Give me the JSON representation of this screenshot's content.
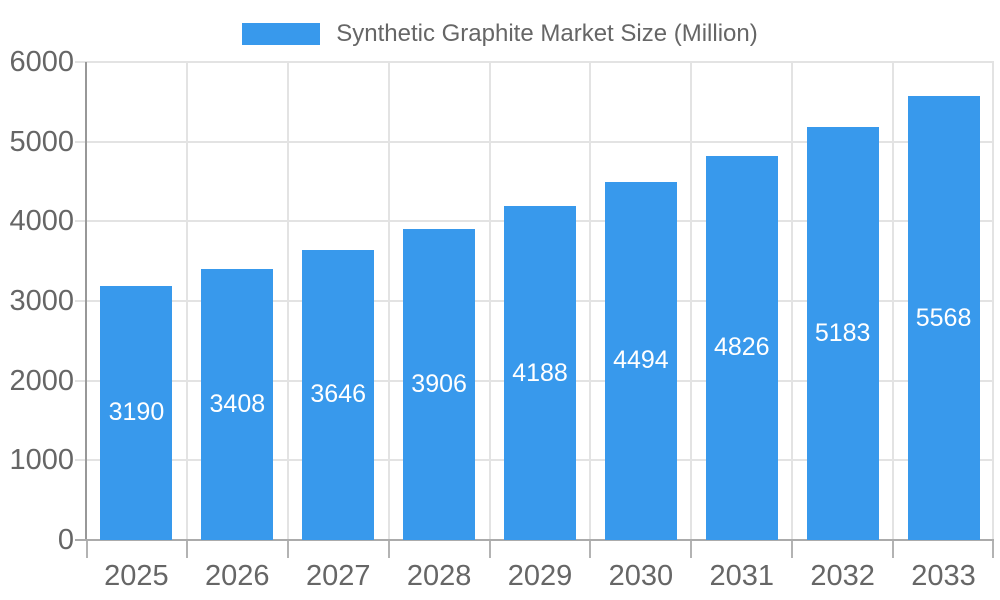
{
  "legend": {
    "label": "Synthetic Graphite Market Size (Million)",
    "swatch_color": "#3899EC"
  },
  "chart_data": {
    "type": "bar",
    "title": "",
    "series_name": "Synthetic Graphite Market Size (Million)",
    "categories": [
      "2025",
      "2026",
      "2027",
      "2028",
      "2029",
      "2030",
      "2031",
      "2032",
      "2033"
    ],
    "values": [
      3190,
      3408,
      3646,
      3906,
      4188,
      4494,
      4826,
      5183,
      5568
    ],
    "xlabel": "",
    "ylabel": "",
    "ylim": [
      0,
      6000
    ],
    "ytick_step": 1000,
    "y_tick_labels": [
      "0",
      "1000",
      "2000",
      "3000",
      "4000",
      "5000",
      "6000"
    ],
    "grid": true,
    "legend_position": "top",
    "colors": {
      "bar": "#3899EC",
      "value_label": "#ffffff",
      "axis_label": "#666666",
      "gridline": "#e3e3e3",
      "axis_line": "#989898"
    }
  }
}
